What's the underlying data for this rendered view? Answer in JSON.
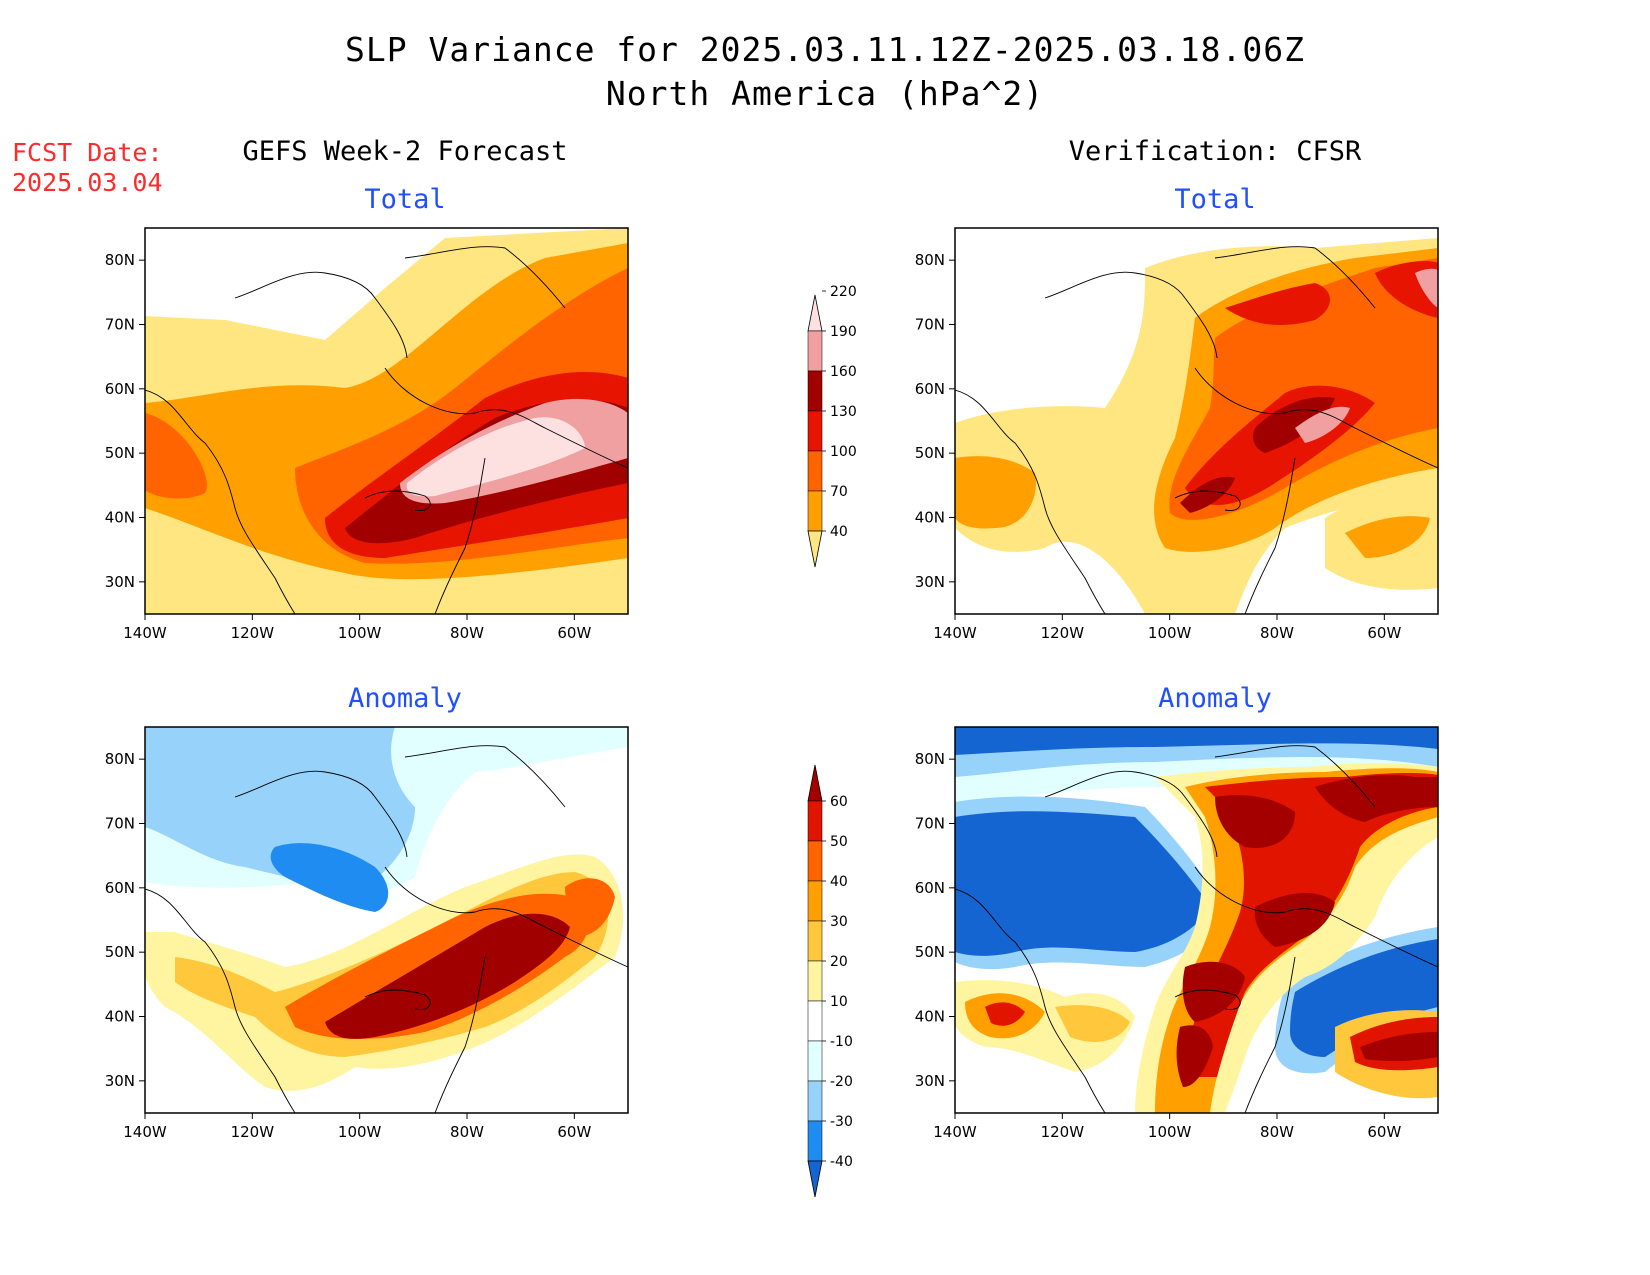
{
  "title": {
    "line1": "SLP Variance for 2025.03.11.12Z-2025.03.18.06Z",
    "line2": "North America (hPa^2)"
  },
  "fcst": {
    "label": "FCST Date:",
    "date": "2025.03.04"
  },
  "columns": {
    "left": "GEFS Week-2 Forecast",
    "right": "Verification: CFSR"
  },
  "panels": {
    "forecast_total": {
      "title": "Total"
    },
    "verif_total": {
      "title": "Total"
    },
    "forecast_anomaly": {
      "title": "Anomaly"
    },
    "verif_anomaly": {
      "title": "Anomaly"
    }
  },
  "axes": {
    "lat_labels": [
      "80N",
      "70N",
      "60N",
      "50N",
      "40N",
      "30N"
    ],
    "lon_labels": [
      "140W",
      "120W",
      "100W",
      "80W",
      "60W"
    ]
  },
  "colorbars": {
    "total": {
      "levels": [
        "40",
        "70",
        "100",
        "130",
        "160",
        "190",
        "220"
      ],
      "colors": [
        "#ffe680",
        "#ffa000",
        "#ff6400",
        "#e61400",
        "#a00000",
        "#f0a0a0",
        "#fde0e0"
      ]
    },
    "anomaly": {
      "levels": [
        "-40",
        "-30",
        "-20",
        "-10",
        "10",
        "20",
        "30",
        "40",
        "50",
        "60"
      ],
      "colors": [
        "#1464d2",
        "#1e8cf0",
        "#96d2fa",
        "#e1ffff",
        "#ffffff",
        "#fff5a0",
        "#ffc83c",
        "#ffa000",
        "#ff6400",
        "#e11400",
        "#a50000"
      ]
    }
  }
}
